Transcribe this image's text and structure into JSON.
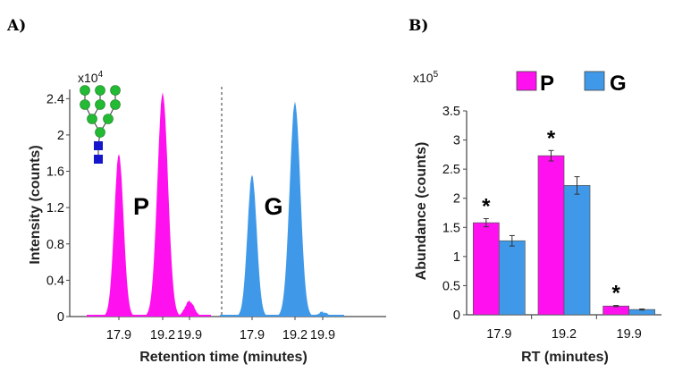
{
  "colors": {
    "P": "#ff10ee",
    "G": "#3f99e8",
    "glycan_mannose": "#22bb33",
    "glycan_glcnac": "#1515cc",
    "axis": "#444444",
    "error": "#333333"
  },
  "icons": {
    "glycan": "glycan-structure-icon"
  },
  "chart_data": [
    {
      "id": "A",
      "panel_label": "A)",
      "type": "area",
      "xlabel": "Retention time (minutes)",
      "ylabel": "Intensity (counts)",
      "y_multiplier": "x10",
      "y_multiplier_exp": "4",
      "ylim": [
        0,
        2.6
      ],
      "yticks": [
        0,
        0.4,
        0.8,
        1.2,
        1.6,
        2,
        2.4
      ],
      "ytick_labels": [
        "0",
        "0.4",
        "0.8",
        "1.2",
        "1.6",
        "2",
        "2.4"
      ],
      "grid": false,
      "divider": "dashed",
      "series": [
        {
          "name": "P",
          "xticks": [
            "17.9",
            "19.2",
            "19.9"
          ],
          "peaks": [
            {
              "rt": 17.9,
              "height": 1.79
            },
            {
              "rt": 19.2,
              "height": 2.46
            },
            {
              "rt": 19.9,
              "height": 0.17
            }
          ]
        },
        {
          "name": "G",
          "xticks": [
            "17.9",
            "19.2",
            "19.9"
          ],
          "peaks": [
            {
              "rt": 17.9,
              "height": 1.56
            },
            {
              "rt": 19.2,
              "height": 2.36
            },
            {
              "rt": 19.9,
              "height": 0.05
            }
          ]
        }
      ]
    },
    {
      "id": "B",
      "panel_label": "B)",
      "type": "bar",
      "xlabel": "RT (minutes)",
      "ylabel": "Abundance (counts)",
      "y_multiplier": "x10",
      "y_multiplier_exp": "5",
      "ylim": [
        0,
        3.5
      ],
      "yticks": [
        0,
        0.5,
        1,
        1.5,
        2,
        2.5,
        3,
        3.5
      ],
      "ytick_labels": [
        "0",
        "0.5",
        "1",
        "1.5",
        "2",
        "2.5",
        "3",
        "3.5"
      ],
      "grid": false,
      "legend_position": "top",
      "categories": [
        "17.9",
        "19.2",
        "19.9"
      ],
      "significance": [
        "*",
        "*",
        "*"
      ],
      "series": [
        {
          "name": "P",
          "values": [
            1.58,
            2.73,
            0.15
          ],
          "errors": [
            0.07,
            0.09,
            0.01
          ]
        },
        {
          "name": "G",
          "values": [
            1.27,
            2.22,
            0.09
          ],
          "errors": [
            0.09,
            0.15,
            0.01
          ]
        }
      ]
    }
  ]
}
